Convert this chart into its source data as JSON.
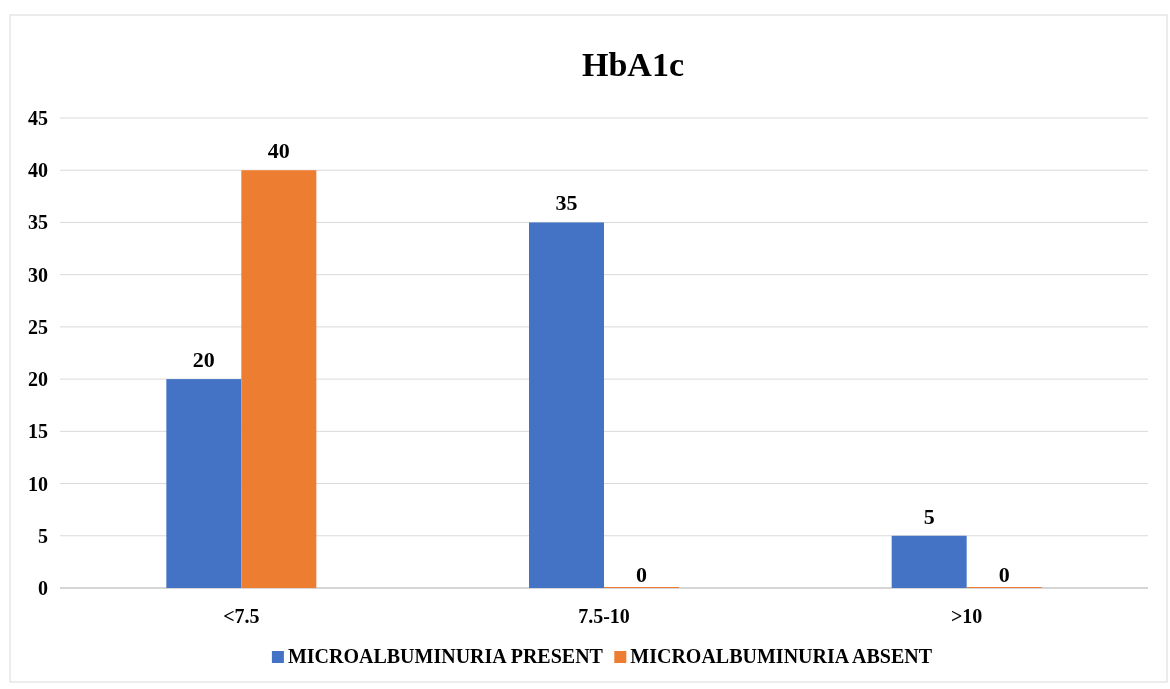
{
  "chart_data": {
    "type": "bar",
    "title": "HbA1c",
    "categories": [
      "<7.5",
      "7.5-10",
      ">10"
    ],
    "series": [
      {
        "name": "MICROALBUMINURIA PRESENT",
        "color": "#4472c4",
        "values": [
          20,
          35,
          5
        ]
      },
      {
        "name": "MICROALBUMINURIA ABSENT",
        "color": "#ed7d31",
        "values": [
          40,
          0,
          0
        ]
      }
    ],
    "ylim": [
      0,
      45
    ],
    "yticks": [
      0,
      5,
      10,
      15,
      20,
      25,
      30,
      35,
      40,
      45
    ],
    "grid": "y",
    "legend": "bottom",
    "data_labels": true
  }
}
